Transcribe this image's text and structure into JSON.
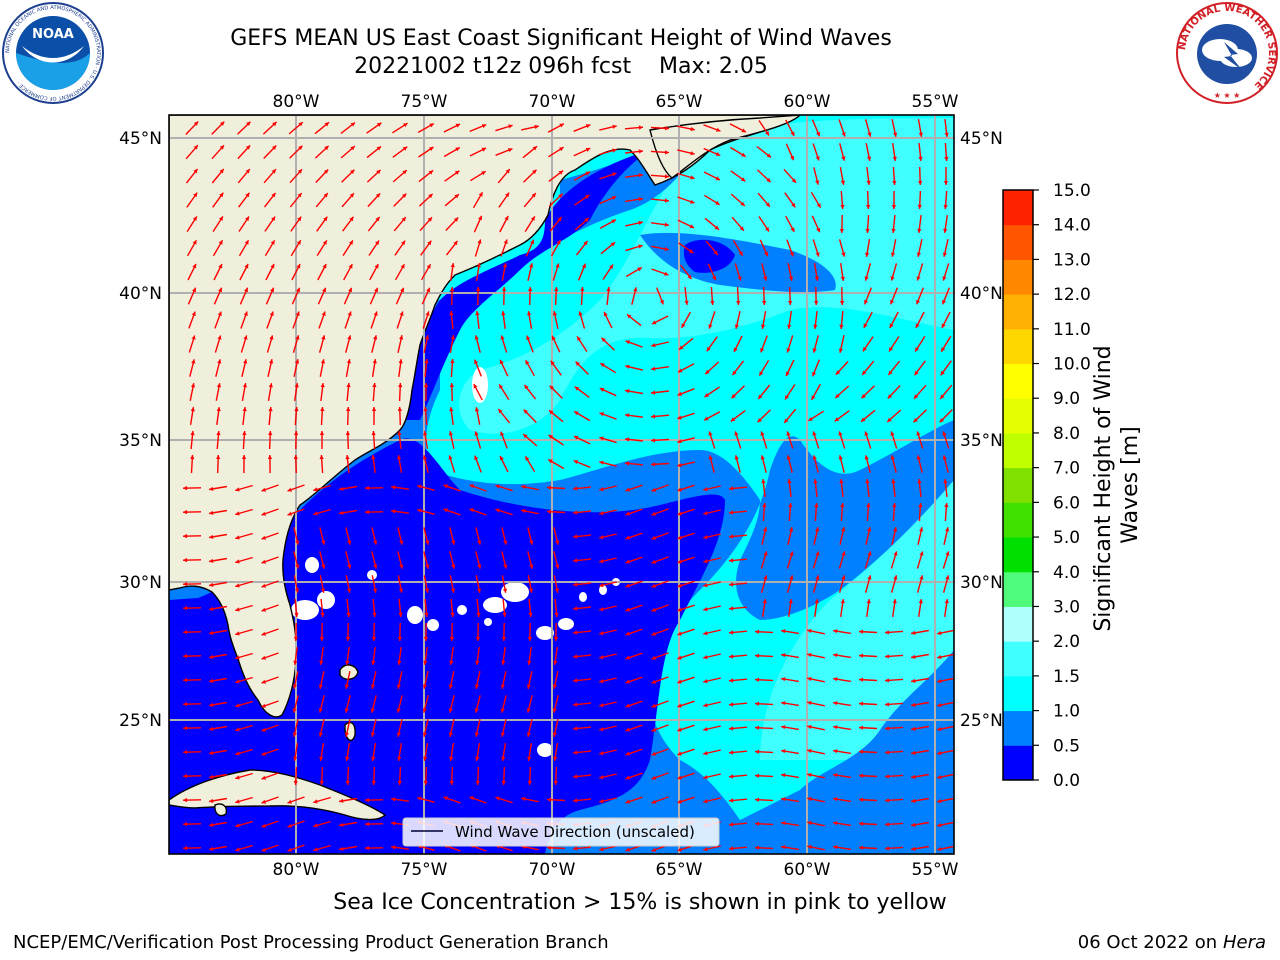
{
  "header": {
    "title_line1": "GEFS MEAN US East Coast Significant Height of Wind Waves",
    "title_line2": "20221002 t12z 096h fcst    Max: 2.05"
  },
  "map": {
    "projection": "plate-carree",
    "lon_range": [
      -85,
      -54.2
    ],
    "lat_range": [
      20.3,
      46
    ],
    "lon_ticks": [
      "80°W",
      "75°W",
      "70°W",
      "65°W",
      "60°W",
      "55°W"
    ],
    "lat_ticks": [
      "45°N",
      "40°N",
      "35°N",
      "30°N",
      "25°N"
    ],
    "grid": true,
    "legend_label": "Wind Wave Direction (unscaled)",
    "legend_placement": "bottom-center",
    "ocean_colors": {
      "0-0.5": "#0000ff",
      "0.5-1.0": "#0080ff",
      "1.0-1.5": "#00ffff",
      "1.5-2.0": "#40ffff"
    },
    "land_color": "#efefdc",
    "arrow_color": "#ff0000"
  },
  "colorbar": {
    "label": "Significant Height of Wind Waves [m]",
    "ticks": [
      "0.0",
      "0.5",
      "1.0",
      "1.5",
      "2.0",
      "3.0",
      "4.0",
      "5.0",
      "6.0",
      "7.0",
      "8.0",
      "9.0",
      "10.0",
      "11.0",
      "12.0",
      "13.0",
      "14.0",
      "15.0"
    ],
    "colors": [
      "#0000ff",
      "#0080ff",
      "#00ffff",
      "#40ffff",
      "#b0ffff",
      "#50fa7b",
      "#00e000",
      "#40e000",
      "#80e000",
      "#c0ff00",
      "#e6ff00",
      "#ffff00",
      "#ffd700",
      "#ffb000",
      "#ff8800",
      "#ff5500",
      "#ff2200"
    ]
  },
  "footer": {
    "note": "Sea Ice Concentration > 15% is shown in pink to yellow",
    "credit": "NCEP/EMC/Verification Post Processing Product Generation Branch",
    "date": "06 Oct 2022 on",
    "machine": "Hera"
  },
  "logos": {
    "noaa_text": "NOAA",
    "noaa_ring": "NATIONAL OCEANIC AND ATMOSPHERIC ADMINISTRATION · U.S. DEPARTMENT OF COMMERCE ·",
    "nws_ring": "NATIONAL WEATHER SERVICE"
  }
}
